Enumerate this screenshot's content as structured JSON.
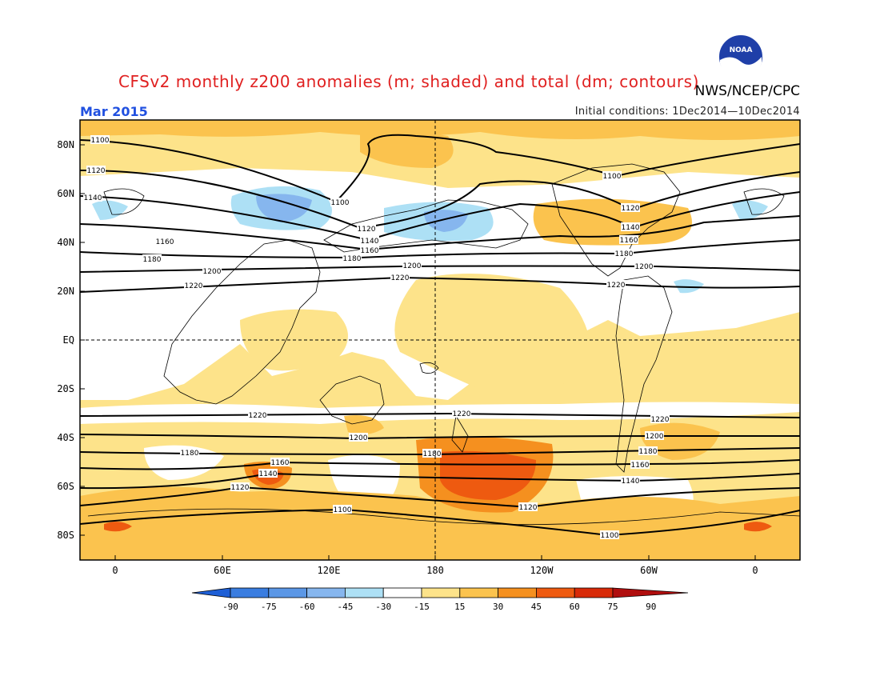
{
  "title": "CFSv2 monthly z200 anomalies (m; shaded) and total (dm; contours)",
  "credit": "NWS/NCEP/CPC",
  "logo_text": "NOAA",
  "month": "Mar 2015",
  "initial_conditions": "Initial conditions: 1Dec2014—10Dec2014",
  "lat_labels": [
    "80N",
    "60N",
    "40N",
    "20N",
    "EQ",
    "20S",
    "40S",
    "60S",
    "80S"
  ],
  "lon_labels": [
    "0",
    "60E",
    "120E",
    "180",
    "120W",
    "60W",
    "0"
  ],
  "colorbar": {
    "labels": [
      "-90",
      "-75",
      "-60",
      "-45",
      "-30",
      "-15",
      "15",
      "30",
      "45",
      "60",
      "75",
      "90"
    ],
    "colors": [
      "#1e5fd6",
      "#3a7de0",
      "#5b97e6",
      "#86b6ee",
      "#ade0f5",
      "#ffffff",
      "#fde38a",
      "#fbc34e",
      "#f5901f",
      "#ee5a10",
      "#d82a08",
      "#b00e0e"
    ]
  },
  "contours": [
    {
      "label": "1100",
      "positions": [
        [
          125,
          175
        ],
        [
          425,
          253
        ],
        [
          765,
          220
        ],
        [
          428,
          637
        ],
        [
          762,
          669
        ]
      ]
    },
    {
      "label": "1120",
      "positions": [
        [
          120,
          213
        ],
        [
          458,
          286
        ],
        [
          788,
          260
        ],
        [
          300,
          609
        ],
        [
          660,
          634
        ]
      ]
    },
    {
      "label": "1140",
      "positions": [
        [
          116,
          247
        ],
        [
          462,
          301
        ],
        [
          788,
          284
        ],
        [
          335,
          592
        ],
        [
          788,
          601
        ]
      ]
    },
    {
      "label": "1160",
      "positions": [
        [
          206,
          302
        ],
        [
          462,
          313
        ],
        [
          786,
          300
        ],
        [
          350,
          578
        ],
        [
          800,
          581
        ]
      ]
    },
    {
      "label": "1180",
      "positions": [
        [
          190,
          324
        ],
        [
          440,
          323
        ],
        [
          780,
          317
        ],
        [
          237,
          566
        ],
        [
          540,
          567
        ],
        [
          810,
          564
        ]
      ]
    },
    {
      "label": "1200",
      "positions": [
        [
          515,
          332
        ],
        [
          805,
          333
        ],
        [
          265,
          339
        ],
        [
          448,
          547
        ],
        [
          818,
          545
        ]
      ]
    },
    {
      "label": "1220",
      "positions": [
        [
          500,
          347
        ],
        [
          242,
          357
        ],
        [
          770,
          356
        ],
        [
          322,
          519
        ],
        [
          577,
          517
        ],
        [
          825,
          524
        ]
      ]
    }
  ],
  "map_colors": {
    "positive_light": "#fde38a",
    "positive": "#fbc34e",
    "positive_strong": "#f5901f",
    "positive_stronger": "#ee5a10",
    "negative_light": "#ade0f5",
    "negative": "#86b6ee"
  }
}
